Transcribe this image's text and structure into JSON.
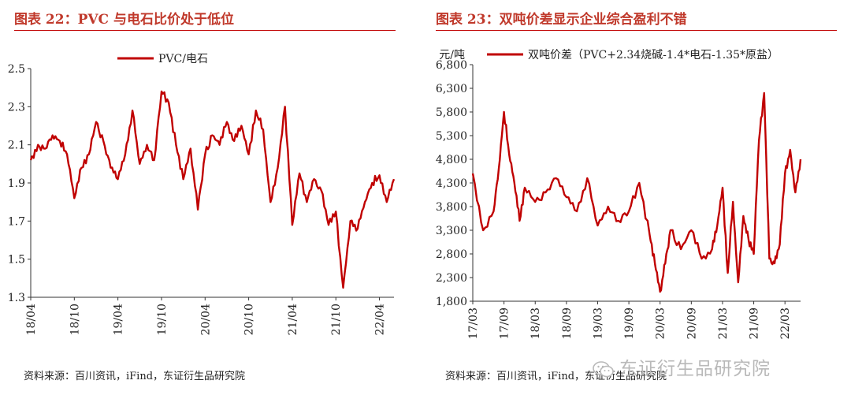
{
  "panels": [
    {
      "title": "图表 22：PVC 与电石比价处于低位",
      "source": "资料来源：百川资讯，iFind，东证衍生品研究院"
    },
    {
      "title": "图表 23：双吨价差显示企业综合盈利不错",
      "source": "资料来源：百川资讯，iFind，东证衍生品研究院"
    }
  ],
  "watermark": "东证衍生品研究院",
  "colors": {
    "line": "#c00000",
    "title": "#c0392b",
    "rule": "#c00000"
  },
  "chart_data": [
    {
      "type": "line",
      "title": "图表 22：PVC 与电石比价处于低位",
      "xlabel": "",
      "ylabel": "",
      "ylim": [
        1.3,
        2.5
      ],
      "yticks": [
        "1.3",
        "1.5",
        "1.7",
        "1.9",
        "2.1",
        "2.3",
        "2.5"
      ],
      "xticks": [
        "18/04",
        "18/10",
        "19/04",
        "19/10",
        "20/04",
        "20/10",
        "21/04",
        "21/10",
        "22/04"
      ],
      "xlim": [
        "2018-04",
        "2022-06"
      ],
      "grid": false,
      "legend": "top-center",
      "series": [
        {
          "name": "PVC/电石",
          "color": "#c00000",
          "x": [
            "2018-04",
            "2018-05",
            "2018-06",
            "2018-07",
            "2018-08",
            "2018-09",
            "2018-10",
            "2018-11",
            "2018-12",
            "2019-01",
            "2019-02",
            "2019-03",
            "2019-04",
            "2019-05",
            "2019-06",
            "2019-07",
            "2019-08",
            "2019-09",
            "2019-10",
            "2019-11",
            "2019-12",
            "2020-01",
            "2020-02",
            "2020-03",
            "2020-04",
            "2020-05",
            "2020-06",
            "2020-07",
            "2020-08",
            "2020-09",
            "2020-10",
            "2020-11",
            "2020-12",
            "2021-01",
            "2021-02",
            "2021-03",
            "2021-04",
            "2021-05",
            "2021-06",
            "2021-07",
            "2021-08",
            "2021-09",
            "2021-10",
            "2021-11",
            "2021-12",
            "2022-01",
            "2022-02",
            "2022-03",
            "2022-04",
            "2022-05",
            "2022-06"
          ],
          "values": [
            2.02,
            2.1,
            2.08,
            2.15,
            2.12,
            2.05,
            1.82,
            1.98,
            2.05,
            2.22,
            2.12,
            1.98,
            1.92,
            2.05,
            2.28,
            2.0,
            2.1,
            2.02,
            2.38,
            2.32,
            2.1,
            1.92,
            2.08,
            1.76,
            2.05,
            2.15,
            2.1,
            2.22,
            2.12,
            2.2,
            2.05,
            2.28,
            2.18,
            1.8,
            1.98,
            2.3,
            1.68,
            1.95,
            1.8,
            1.92,
            1.86,
            1.68,
            1.75,
            1.35,
            1.7,
            1.66,
            1.8,
            1.9,
            1.94,
            1.8,
            1.92
          ]
        }
      ]
    },
    {
      "type": "line",
      "title": "图表 23：双吨价差显示企业综合盈利不错",
      "xlabel": "",
      "ylabel": "元/吨",
      "ylim": [
        1800,
        6800
      ],
      "yticks": [
        "1,800",
        "2,300",
        "2,800",
        "3,300",
        "3,800",
        "4,300",
        "4,800",
        "5,300",
        "5,800",
        "6,300",
        "6,800"
      ],
      "xticks": [
        "17/03",
        "17/09",
        "18/03",
        "18/09",
        "19/03",
        "19/09",
        "20/03",
        "20/09",
        "21/03",
        "21/09",
        "22/03"
      ],
      "xlim": [
        "2017-03",
        "2022-06"
      ],
      "grid": false,
      "legend": "top",
      "series": [
        {
          "name": "双吨价差（PVC+2.34烧碱-1.4*电石-1.35*原盐）",
          "color": "#c00000",
          "x": [
            "2017-03",
            "2017-05",
            "2017-07",
            "2017-08",
            "2017-09",
            "2017-10",
            "2017-11",
            "2017-12",
            "2018-01",
            "2018-03",
            "2018-05",
            "2018-07",
            "2018-09",
            "2018-11",
            "2019-01",
            "2019-03",
            "2019-05",
            "2019-07",
            "2019-09",
            "2019-11",
            "2020-01",
            "2020-02",
            "2020-03",
            "2020-04",
            "2020-05",
            "2020-07",
            "2020-09",
            "2020-11",
            "2021-01",
            "2021-02",
            "2021-03",
            "2021-04",
            "2021-05",
            "2021-06",
            "2021-07",
            "2021-08",
            "2021-09",
            "2021-10",
            "2021-11",
            "2021-12",
            "2022-01",
            "2022-02",
            "2022-03",
            "2022-04",
            "2022-05",
            "2022-06"
          ],
          "values": [
            4500,
            3300,
            3700,
            4600,
            5800,
            4900,
            4300,
            3500,
            4200,
            3900,
            4100,
            4400,
            4000,
            3700,
            4400,
            3400,
            3800,
            3500,
            3700,
            4300,
            3200,
            2600,
            2000,
            2600,
            3300,
            2900,
            3300,
            2700,
            2900,
            3400,
            4200,
            2400,
            3900,
            2200,
            3600,
            3100,
            2800,
            5200,
            6200,
            2700,
            2600,
            3000,
            4500,
            5000,
            4100,
            4800
          ]
        }
      ]
    }
  ]
}
